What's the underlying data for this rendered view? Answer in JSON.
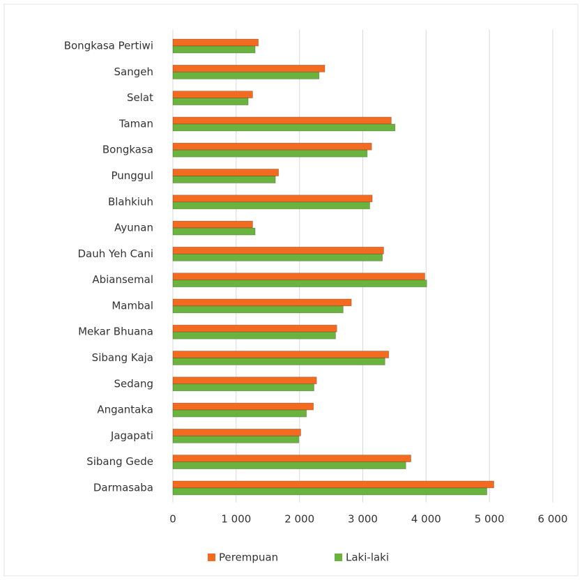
{
  "chart_data": {
    "type": "hbar",
    "categories": [
      "Bongkasa Pertiwi",
      "Sangeh",
      "Selat",
      "Taman",
      "Bongkasa",
      "Punggul",
      "Blahkiuh",
      "Ayunan",
      "Dauh Yeh Cani",
      "Abiansemal",
      "Mambal",
      "Mekar Bhuana",
      "Sibang Kaja",
      "Sedang",
      "Angantaka",
      "Jagapati",
      "Sibang Gede",
      "Darmasaba"
    ],
    "series": [
      {
        "name": "Perempuan",
        "color": "#f26b21",
        "values": [
          1350,
          2400,
          1260,
          3450,
          3140,
          1670,
          3150,
          1260,
          3330,
          3980,
          2820,
          2590,
          3410,
          2270,
          2220,
          2020,
          3760,
          5070
        ]
      },
      {
        "name": "Laki-laki",
        "color": "#6ab33f",
        "values": [
          1300,
          2310,
          1190,
          3510,
          3070,
          1620,
          3110,
          1300,
          3310,
          4010,
          2690,
          2570,
          3350,
          2230,
          2110,
          1990,
          3680,
          4960
        ]
      }
    ],
    "xlim": [
      0,
      6000
    ],
    "xticks": [
      0,
      {
        "value": 1000,
        "label": "1 000"
      },
      {
        "value": 2000,
        "label": "2 000"
      },
      {
        "value": 3000,
        "label": "3 000"
      },
      {
        "value": 4000,
        "label": "4 000"
      },
      {
        "value": 5000,
        "label": "5 000"
      },
      {
        "value": 6000,
        "label": "6 000"
      }
    ],
    "grid": true,
    "legend": "bottom"
  }
}
